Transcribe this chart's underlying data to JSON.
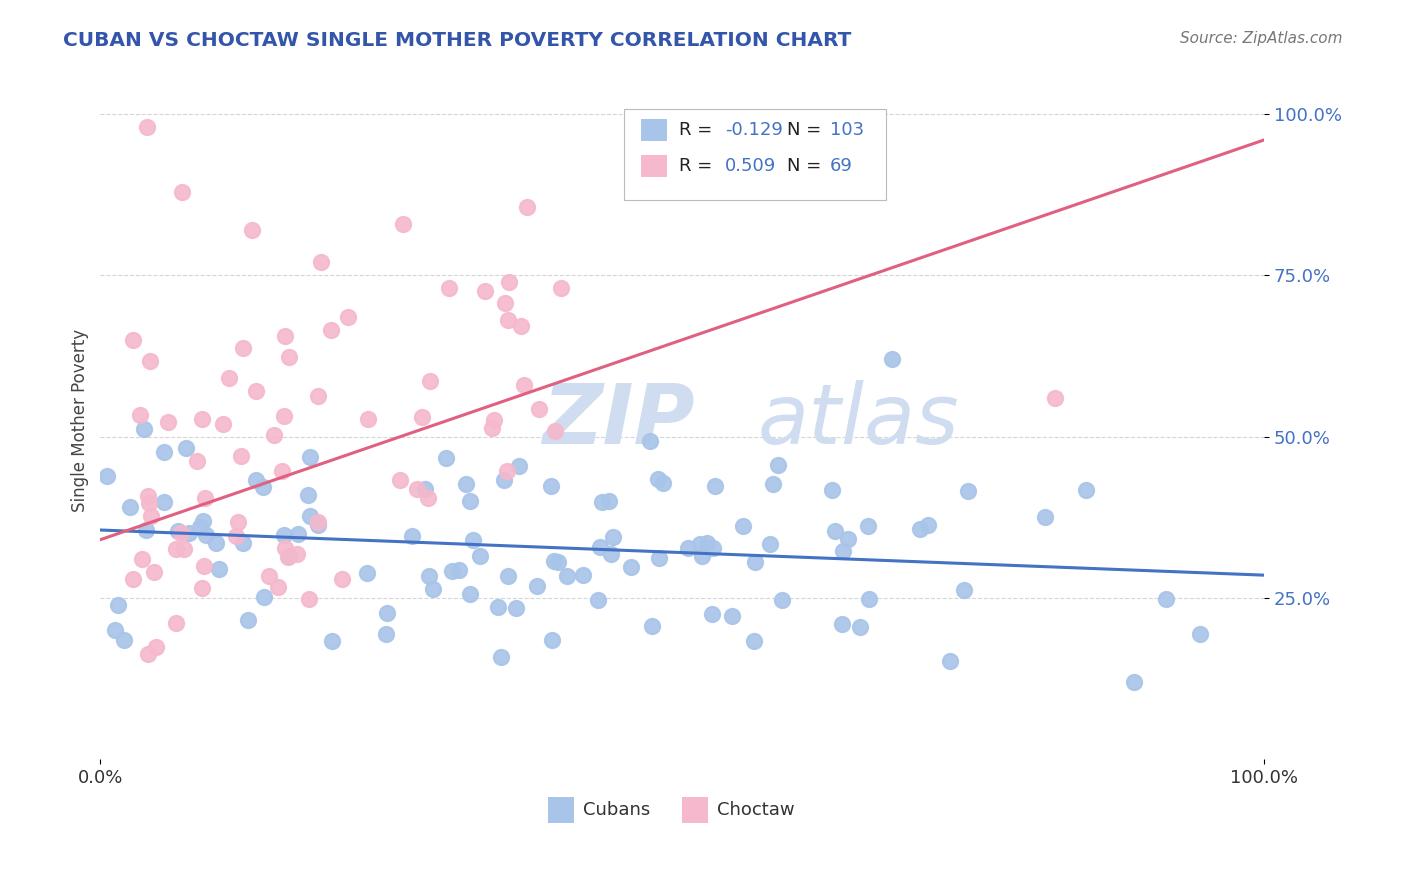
{
  "title": "CUBAN VS CHOCTAW SINGLE MOTHER POVERTY CORRELATION CHART",
  "source": "Source: ZipAtlas.com",
  "ylabel": "Single Mother Poverty",
  "ytick_labels": [
    "25.0%",
    "50.0%",
    "75.0%",
    "100.0%"
  ],
  "ytick_values": [
    0.25,
    0.5,
    0.75,
    1.0
  ],
  "xtick_labels": [
    "0.0%",
    "100.0%"
  ],
  "xtick_values": [
    0.0,
    1.0
  ],
  "legend_labels_bottom": [
    "Cubans",
    "Choctaw"
  ],
  "legend_R": [
    -0.129,
    0.509
  ],
  "legend_N": [
    103,
    69
  ],
  "blue_scatter_color": "#a8c4e8",
  "pink_scatter_color": "#f5b8cc",
  "blue_line_color": "#4472c4",
  "pink_line_color": "#e06080",
  "label_color": "#4472c4",
  "title_color": "#3355aa",
  "watermark_color": "#d0ddf0",
  "background_color": "#ffffff",
  "grid_color": "#cccccc",
  "xlim": [
    0.0,
    1.0
  ],
  "ylim": [
    0.0,
    1.05
  ],
  "blue_line_y0": 0.355,
  "blue_line_y1": 0.285,
  "pink_line_y0": 0.34,
  "pink_line_y1": 0.96
}
